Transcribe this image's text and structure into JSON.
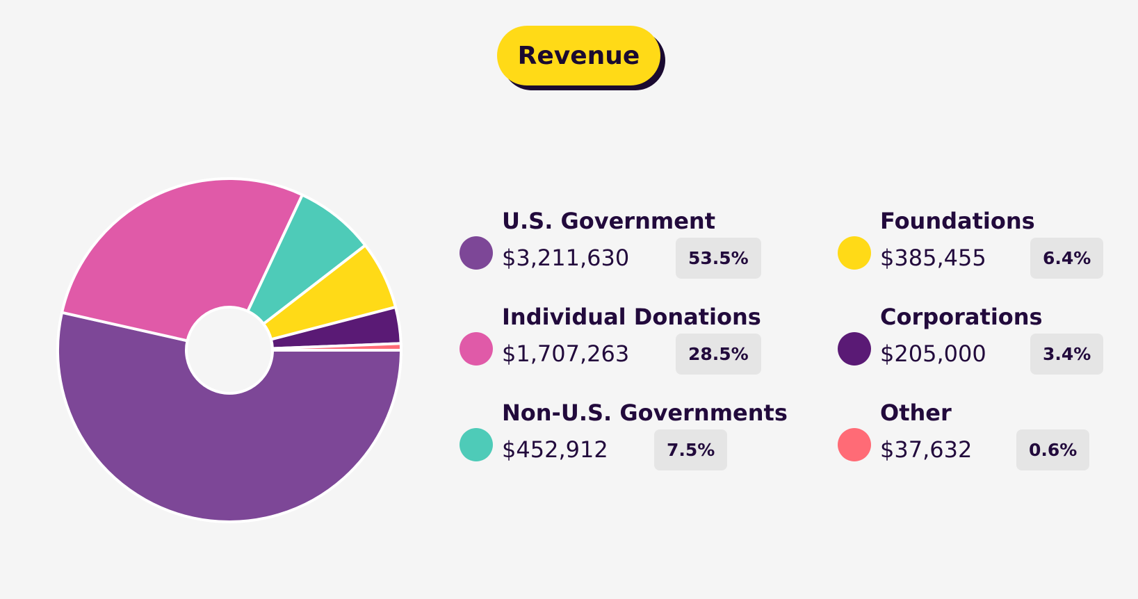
{
  "chart_data": {
    "type": "pie",
    "title": "Revenue",
    "donut": true,
    "start": "3 o'clock, clockwise",
    "slices": [
      {
        "label": "U.S. Government",
        "amount": "$3,211,630",
        "value": 3211630,
        "percent": "53.5%",
        "color": "#7d4797"
      },
      {
        "label": "Individual Donations",
        "amount": "$1,707,263",
        "value": 1707263,
        "percent": "28.5%",
        "color": "#e05aa8"
      },
      {
        "label": "Non-U.S. Governments",
        "amount": "$452,912",
        "value": 452912,
        "percent": "7.5%",
        "color": "#4ecbb8"
      },
      {
        "label": "Foundations",
        "amount": "$385,455",
        "value": 385455,
        "percent": "6.4%",
        "color": "#ffda17"
      },
      {
        "label": "Corporations",
        "amount": "$205,000",
        "value": 205000,
        "percent": "3.4%",
        "color": "#5a1a75"
      },
      {
        "label": "Other",
        "amount": "$37,632",
        "value": 37632,
        "percent": "0.6%",
        "color": "#ff6b76"
      }
    ],
    "legend_placement": "right"
  }
}
